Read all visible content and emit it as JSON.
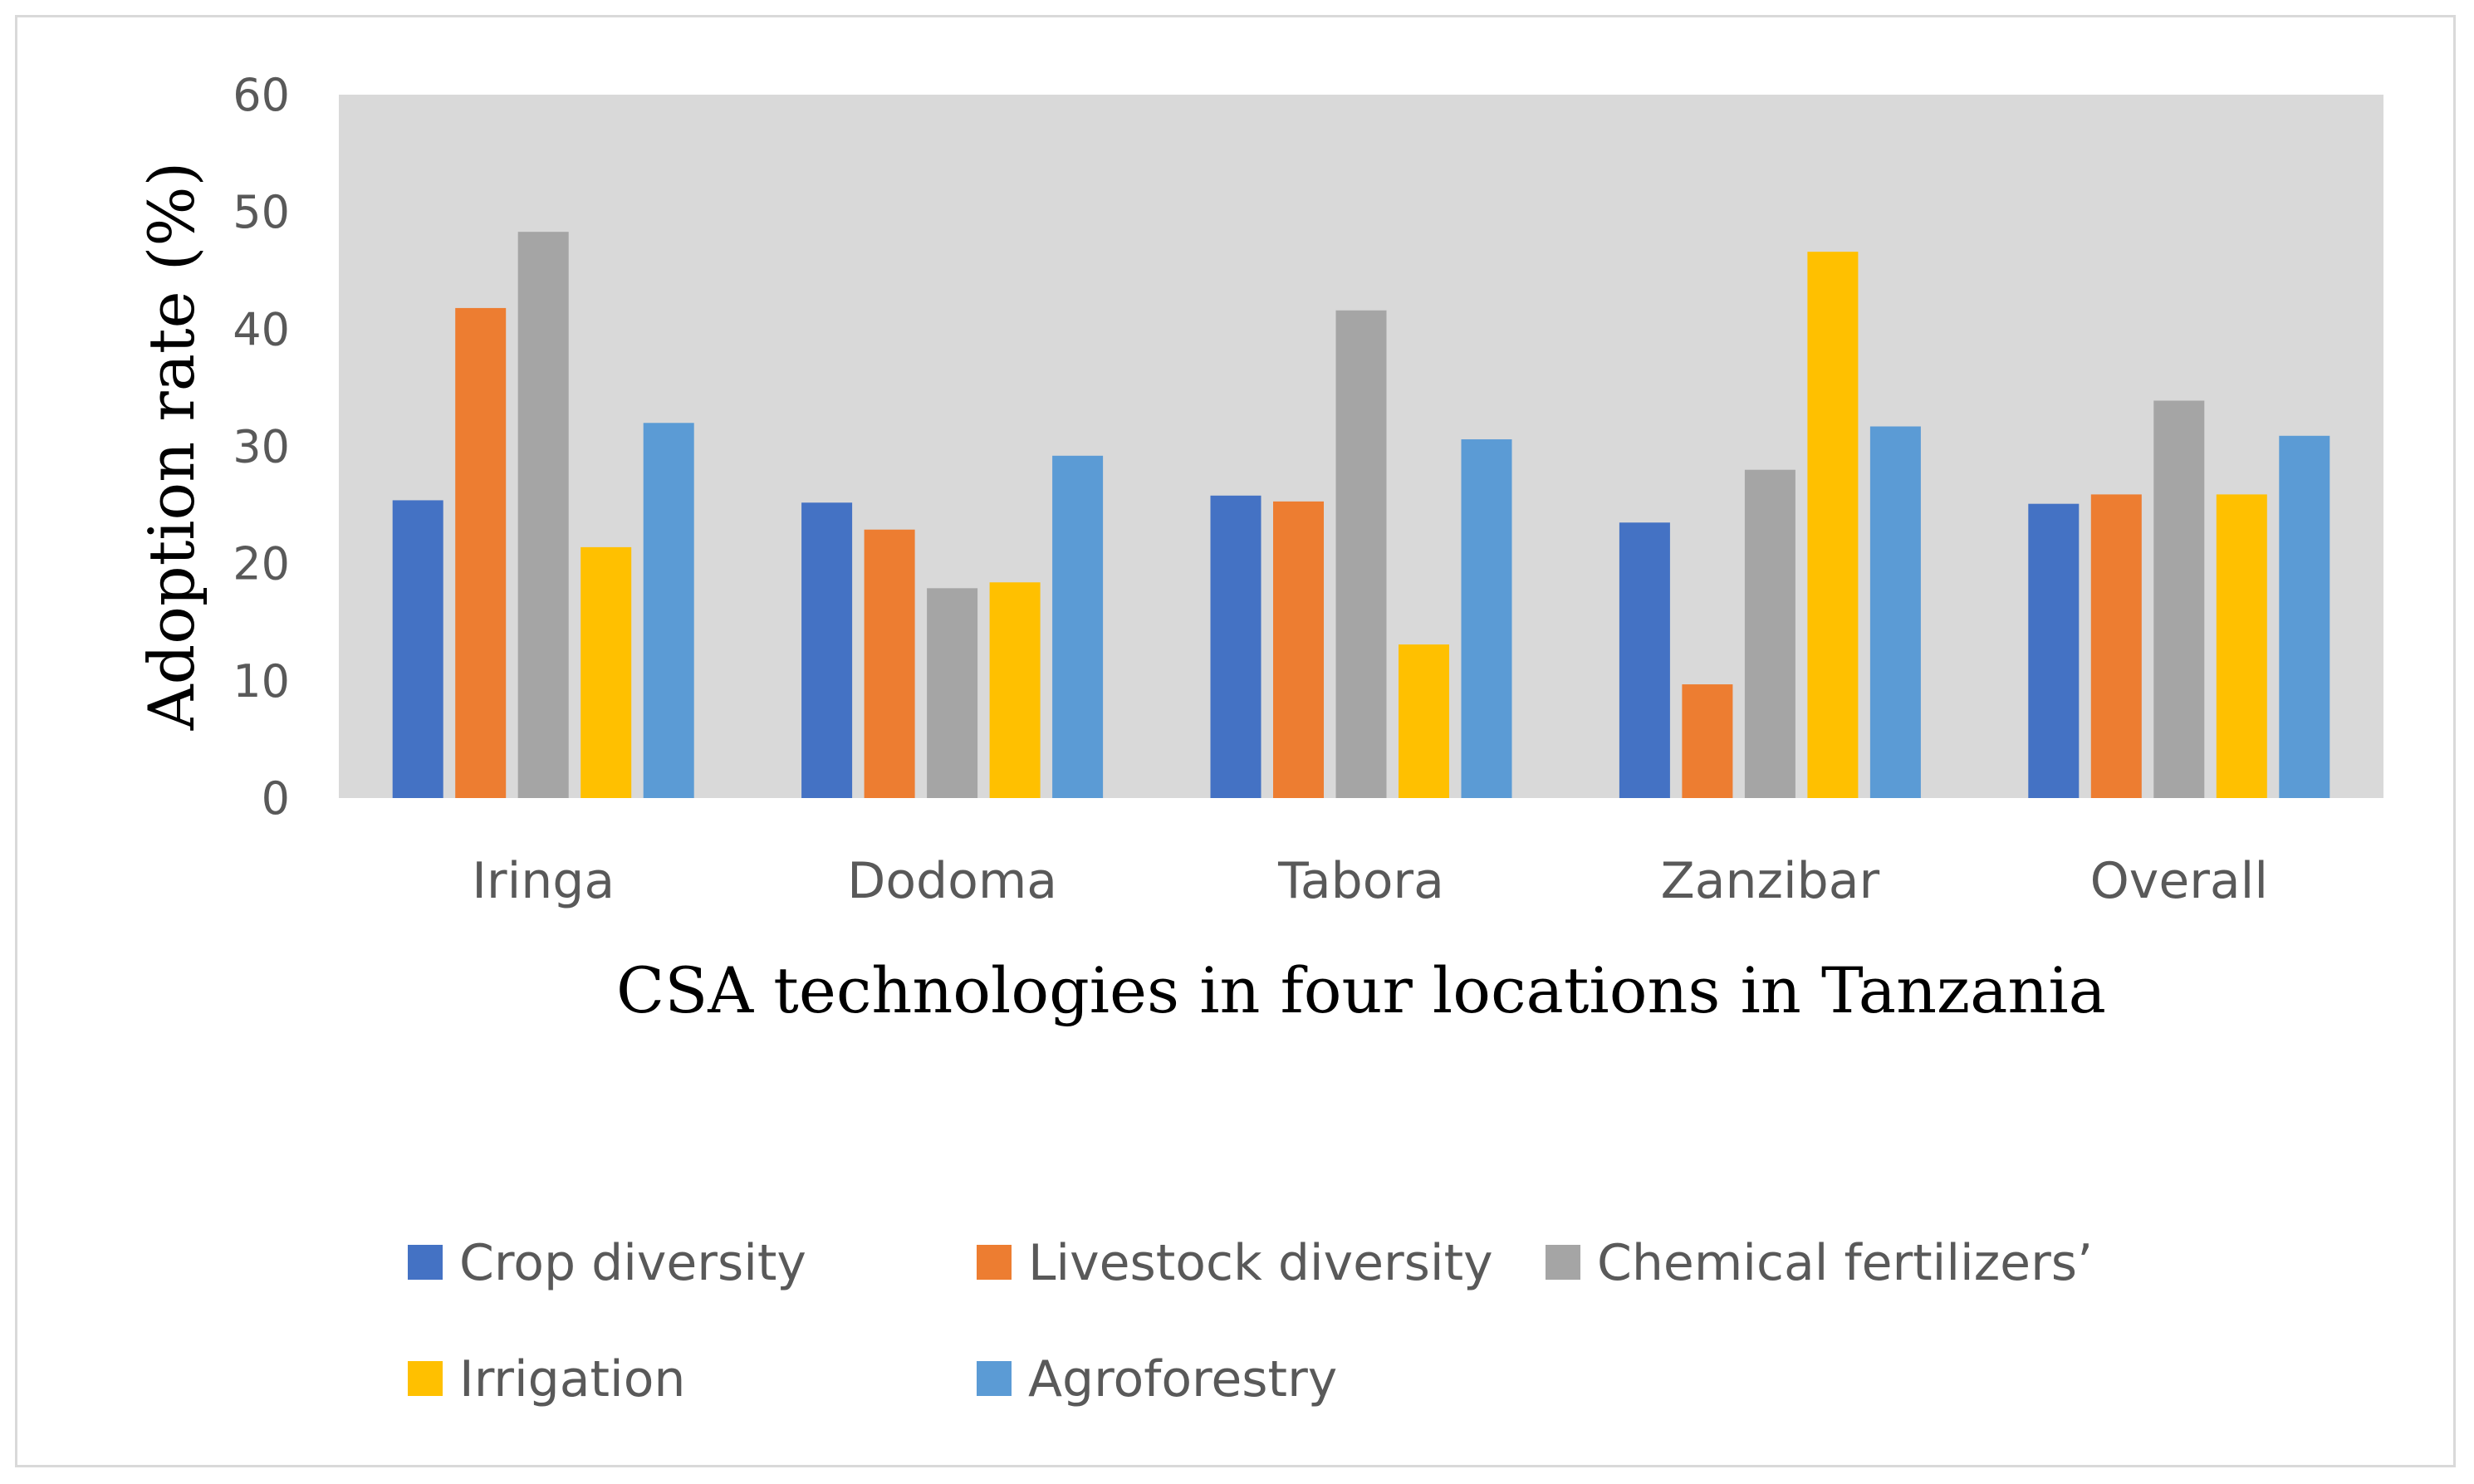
{
  "chart_data": {
    "type": "bar",
    "title": "",
    "xlabel": "CSA technologies in four locations in Tanzania",
    "ylabel": "Adoption rate (%)",
    "ylim": [
      0,
      60
    ],
    "yticks": [
      0,
      10,
      20,
      30,
      40,
      50,
      60
    ],
    "grid": false,
    "legend_position": "bottom",
    "plot_background": "#d9d9d9",
    "categories": [
      "Iringa",
      "Dodoma",
      "Tabora",
      "Zanzibar",
      "Overall"
    ],
    "series": [
      {
        "name": "Crop diversity",
        "color": "#4472c4",
        "values": [
          25.4,
          25.2,
          25.8,
          23.5,
          25.1
        ]
      },
      {
        "name": "Livestock diversity",
        "color": "#ed7d31",
        "values": [
          41.8,
          22.9,
          25.3,
          9.7,
          25.9
        ]
      },
      {
        "name": "Chemical fertilizers’",
        "color": "#a5a5a5",
        "values": [
          48.3,
          17.9,
          41.6,
          28.0,
          33.9
        ]
      },
      {
        "name": "Irrigation",
        "color": "#ffc000",
        "values": [
          21.4,
          18.4,
          13.1,
          46.6,
          25.9
        ]
      },
      {
        "name": "Agroforestry",
        "color": "#5b9bd5",
        "values": [
          32.0,
          29.2,
          30.6,
          31.7,
          30.9
        ]
      }
    ]
  }
}
